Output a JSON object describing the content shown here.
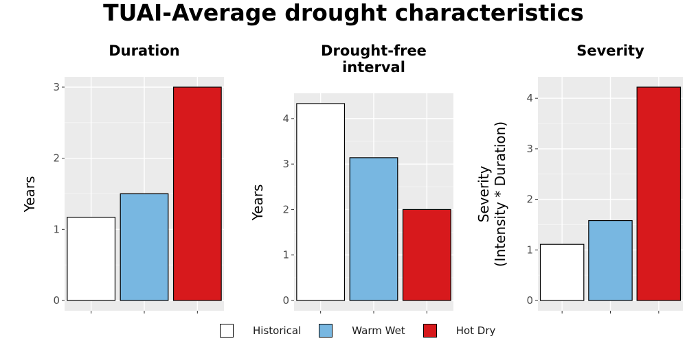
{
  "title": "TUAI-Average drought characteristics",
  "legend": [
    {
      "label": "Historical",
      "color": "#ffffff"
    },
    {
      "label": "Warm Wet",
      "color": "#78b7e1"
    },
    {
      "label": "Hot Dry",
      "color": "#d7191c"
    }
  ],
  "chart_data": [
    {
      "type": "bar",
      "title": [
        "Duration"
      ],
      "ylabel": [
        "Years"
      ],
      "categories": [
        "Historical",
        "Warm Wet",
        "Hot Dry"
      ],
      "values": [
        1.17,
        1.5,
        3.0
      ],
      "ylim": [
        0,
        3
      ],
      "yticks": [
        0,
        1,
        2,
        3
      ],
      "grid": true
    },
    {
      "type": "bar",
      "title": [
        "Drought-free",
        "interval"
      ],
      "ylabel": [
        "Years"
      ],
      "categories": [
        "Historical",
        "Warm Wet",
        "Hot Dry"
      ],
      "values": [
        4.33,
        3.14,
        2.0
      ],
      "ylim": [
        0,
        4.33
      ],
      "yticks": [
        0,
        1,
        2,
        3,
        4
      ],
      "grid": true
    },
    {
      "type": "bar",
      "title": [
        "Severity"
      ],
      "ylabel": [
        "Severity",
        "(Intensity * Duration)"
      ],
      "categories": [
        "Historical",
        "Warm Wet",
        "Hot Dry"
      ],
      "values": [
        1.11,
        1.58,
        4.22
      ],
      "ylim": [
        0,
        4.22
      ],
      "yticks": [
        0,
        1,
        2,
        3,
        4
      ],
      "grid": true
    }
  ]
}
